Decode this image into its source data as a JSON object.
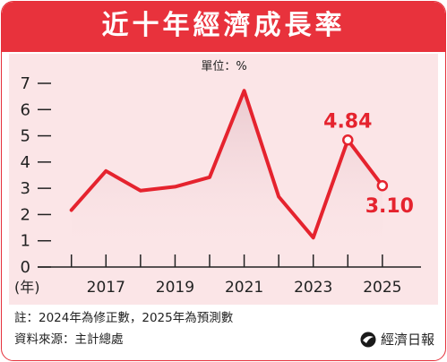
{
  "title": "近十年經濟成長率",
  "unit_label": "單位：%",
  "footnote": "註：2024年為修正數，2025年為預測數",
  "source": "資料來源：主計總處",
  "brand": "經濟日報",
  "colors": {
    "accent": "#e8323c",
    "line": "#e5232e",
    "band": "#fbe5e7",
    "fill_top": "#e9c9ce"
  },
  "chart_data": {
    "type": "line",
    "x": [
      2016,
      2017,
      2018,
      2019,
      2020,
      2021,
      2022,
      2023,
      2024,
      2025
    ],
    "xticks": [
      2016,
      2017,
      2018,
      2019,
      2020,
      2021,
      2022,
      2023,
      2024,
      2025
    ],
    "xtick_labels": [
      "2017",
      "2019",
      "2021",
      "2023",
      "2025"
    ],
    "xtick_label_values": [
      2017,
      2019,
      2021,
      2023,
      2025
    ],
    "xlabel": "(年)",
    "series": [
      {
        "values": [
          2.17,
          3.66,
          2.91,
          3.06,
          3.42,
          6.72,
          2.68,
          1.12,
          4.84,
          3.1
        ]
      }
    ],
    "ylim": [
      0,
      7
    ],
    "yticks": [
      0,
      1,
      2,
      3,
      4,
      5,
      6,
      7
    ],
    "annotations": [
      {
        "x": 2024,
        "y": 4.84,
        "text": "4.84"
      },
      {
        "x": 2025,
        "y": 3.1,
        "text": "3.10"
      }
    ],
    "marked_points": [
      2024,
      2025
    ],
    "grid": false
  }
}
